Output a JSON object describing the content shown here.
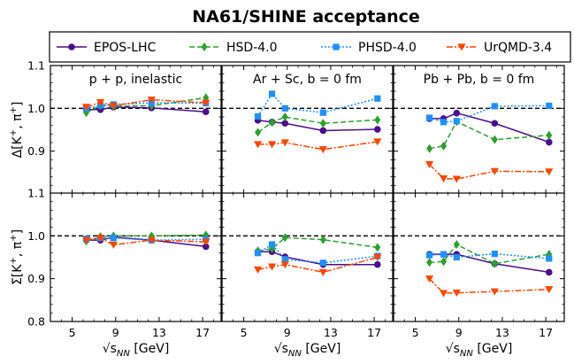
{
  "chart_data": {
    "type": "line",
    "title": "NA61/SHINE acceptance",
    "x": [
      6.3,
      7.6,
      8.8,
      12.3,
      17.3
    ],
    "xticks": [
      5,
      9,
      13,
      17
    ],
    "xtick_labels": [
      "5",
      "9",
      "13",
      "17"
    ],
    "xlabel_main": "√s",
    "xlabel_sub": "NN",
    "xlabel_unit": " [GeV]",
    "xlim": [
      3.0,
      18.7
    ],
    "legend": [
      {
        "name": "EPOS-LHC",
        "color": "#4b0f8c",
        "marker": "circle",
        "dash": ""
      },
      {
        "name": "HSD-4.0",
        "color": "#2ca02c",
        "marker": "diamond",
        "dash": "6,3"
      },
      {
        "name": "PHSD-4.0",
        "color": "#1e90ff",
        "marker": "square",
        "dash": "2,2"
      },
      {
        "name": "UrQMD-3.4",
        "color": "#ff4500",
        "marker": "tri_down",
        "dash": "7,2,2,2"
      }
    ],
    "reference_line": 1.0,
    "rows": [
      {
        "ylabel_main": "Δ[K",
        "ylabel_sup": "+",
        "ylabel_sep": ", π",
        "ylabel_sup2": "+",
        "ylabel_end": "]",
        "ylim": [
          0.8,
          1.1
        ],
        "yticks": [
          "0.8",
          "0.9",
          "1.0",
          "1.1"
        ],
        "yticks_shown": [
          "0.9",
          "1.0",
          "1.1"
        ]
      },
      {
        "ylabel_main": "Σ[K",
        "ylabel_sup": "+",
        "ylabel_sep": ", π",
        "ylabel_sup2": "+",
        "ylabel_end": "]",
        "ylim": [
          0.8,
          1.1
        ],
        "yticks": [
          "0.8",
          "0.9",
          "1.0",
          "1.1"
        ],
        "yticks_shown": [
          "0.8",
          "0.9",
          "1.0",
          "1.1"
        ]
      }
    ],
    "columns": [
      {
        "label": "p + p,  inelastic"
      },
      {
        "label": "Ar + Sc,  b = 0 fm"
      },
      {
        "label": "Pb + Pb,  b = 0 fm"
      }
    ],
    "panels": [
      {
        "row": 0,
        "col": 0,
        "series": [
          {
            "name": "EPOS-LHC",
            "values": [
              0.997,
              0.997,
              1.003,
              1.001,
              0.992
            ]
          },
          {
            "name": "HSD-4.0",
            "values": [
              0.99,
              1.006,
              1.005,
              1.006,
              1.025
            ]
          },
          {
            "name": "PHSD-4.0",
            "values": [
              1.0,
              1.007,
              1.009,
              1.013,
              1.012
            ]
          },
          {
            "name": "UrQMD-3.4",
            "values": [
              1.003,
              1.014,
              1.006,
              1.02,
              1.013
            ]
          }
        ]
      },
      {
        "row": 0,
        "col": 1,
        "series": [
          {
            "name": "EPOS-LHC",
            "values": [
              0.972,
              0.968,
              0.965,
              0.948,
              0.951
            ]
          },
          {
            "name": "HSD-4.0",
            "values": [
              0.944,
              0.967,
              0.98,
              0.965,
              0.973
            ]
          },
          {
            "name": "PHSD-4.0",
            "values": [
              0.981,
              1.034,
              1.0,
              0.99,
              1.023
            ]
          },
          {
            "name": "UrQMD-3.4",
            "values": [
              0.916,
              0.916,
              0.92,
              0.904,
              0.922
            ]
          }
        ]
      },
      {
        "row": 0,
        "col": 2,
        "series": [
          {
            "name": "EPOS-LHC",
            "values": [
              0.976,
              0.976,
              0.989,
              0.965,
              0.921
            ]
          },
          {
            "name": "HSD-4.0",
            "values": [
              0.906,
              0.912,
              0.969,
              0.927,
              0.937
            ]
          },
          {
            "name": "PHSD-4.0",
            "values": [
              0.978,
              0.968,
              0.97,
              1.005,
              1.006
            ]
          },
          {
            "name": "UrQMD-3.4",
            "values": [
              0.869,
              0.836,
              0.835,
              0.853,
              0.852
            ]
          }
        ]
      },
      {
        "row": 1,
        "col": 0,
        "series": [
          {
            "name": "EPOS-LHC",
            "values": [
              0.99,
              0.99,
              0.997,
              0.99,
              0.975
            ]
          },
          {
            "name": "HSD-4.0",
            "values": [
              0.988,
              0.998,
              1.0,
              1.0,
              1.002
            ]
          },
          {
            "name": "PHSD-4.0",
            "values": [
              0.993,
              0.995,
              0.995,
              0.99,
              0.992
            ]
          },
          {
            "name": "UrQMD-3.4",
            "values": [
              0.99,
              0.995,
              0.979,
              0.99,
              0.986
            ]
          }
        ]
      },
      {
        "row": 1,
        "col": 1,
        "series": [
          {
            "name": "EPOS-LHC",
            "values": [
              0.963,
              0.963,
              0.951,
              0.933,
              0.933
            ]
          },
          {
            "name": "HSD-4.0",
            "values": [
              0.965,
              0.97,
              0.996,
              0.991,
              0.973
            ]
          },
          {
            "name": "PHSD-4.0",
            "values": [
              0.96,
              0.98,
              0.945,
              0.937,
              0.953
            ]
          },
          {
            "name": "UrQMD-3.4",
            "values": [
              0.921,
              0.928,
              0.933,
              0.915,
              0.95
            ]
          }
        ]
      },
      {
        "row": 1,
        "col": 2,
        "series": [
          {
            "name": "EPOS-LHC",
            "values": [
              0.957,
              0.957,
              0.957,
              0.935,
              0.915
            ]
          },
          {
            "name": "HSD-4.0",
            "values": [
              0.938,
              0.94,
              0.98,
              0.935,
              0.957
            ]
          },
          {
            "name": "PHSD-4.0",
            "values": [
              0.955,
              0.957,
              0.95,
              0.958,
              0.947
            ]
          },
          {
            "name": "UrQMD-3.4",
            "values": [
              0.9,
              0.866,
              0.867,
              0.87,
              0.875
            ]
          }
        ]
      }
    ]
  }
}
